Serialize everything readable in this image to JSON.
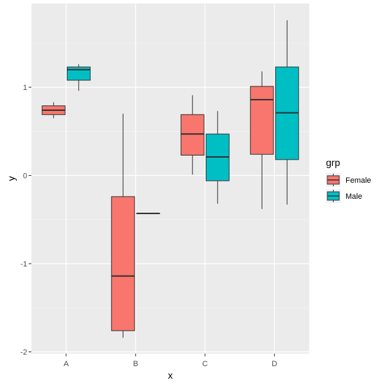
{
  "chart_data": {
    "type": "boxplot",
    "xlabel": "x",
    "ylabel": "y",
    "ylim": [
      -2.02,
      1.95
    ],
    "y_ticks": [
      -2,
      -1,
      0,
      1
    ],
    "categories": [
      "A",
      "B",
      "C",
      "D"
    ],
    "legend": {
      "title": "grp",
      "placement": "right"
    },
    "series": [
      {
        "name": "Female",
        "color": "#F8766D",
        "boxes": [
          {
            "category": "A",
            "min": 0.65,
            "q1": 0.69,
            "median": 0.74,
            "q3": 0.79,
            "max": 0.83
          },
          {
            "category": "B",
            "min": -1.84,
            "q1": -1.76,
            "median": -1.14,
            "q3": -0.24,
            "max": 0.7
          },
          {
            "category": "C",
            "min": 0.01,
            "q1": 0.23,
            "median": 0.47,
            "q3": 0.69,
            "max": 0.91
          },
          {
            "category": "D",
            "min": -0.38,
            "q1": 0.24,
            "median": 0.86,
            "q3": 1.01,
            "max": 1.18
          }
        ]
      },
      {
        "name": "Male",
        "color": "#00BFC4",
        "boxes": [
          {
            "category": "A",
            "min": 0.96,
            "q1": 1.08,
            "median": 1.2,
            "q3": 1.23,
            "max": 1.26
          },
          {
            "category": "B",
            "min": -0.43,
            "q1": -0.43,
            "median": -0.43,
            "q3": -0.43,
            "max": -0.43
          },
          {
            "category": "C",
            "min": -0.32,
            "q1": -0.06,
            "median": 0.21,
            "q3": 0.47,
            "max": 0.73
          },
          {
            "category": "D",
            "min": -0.33,
            "q1": 0.18,
            "median": 0.71,
            "q3": 1.23,
            "max": 1.76
          }
        ]
      }
    ],
    "style": {
      "panel_background": "#EBEBEB",
      "grid_color": "#FFFFFF",
      "box_outline": "#333333"
    }
  }
}
